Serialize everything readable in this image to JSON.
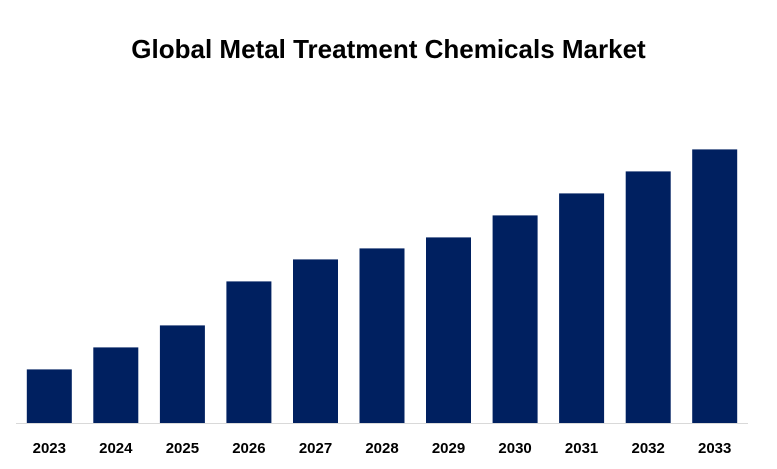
{
  "chart_data": {
    "type": "bar",
    "title": "Global Metal Treatment Chemicals Market",
    "categories": [
      "2023",
      "2024",
      "2025",
      "2026",
      "2027",
      "2028",
      "2029",
      "2030",
      "2031",
      "2032",
      "2033"
    ],
    "values": [
      19.5,
      27.5,
      35.5,
      51.5,
      59.5,
      63.5,
      67.5,
      75.5,
      83.5,
      91.5,
      99.5
    ],
    "xlabel": "",
    "ylabel": "",
    "ylim": [
      0,
      100
    ],
    "grid": false,
    "legend": "none",
    "bar_color": "#002060",
    "axis_color": "#d9d9d9"
  }
}
